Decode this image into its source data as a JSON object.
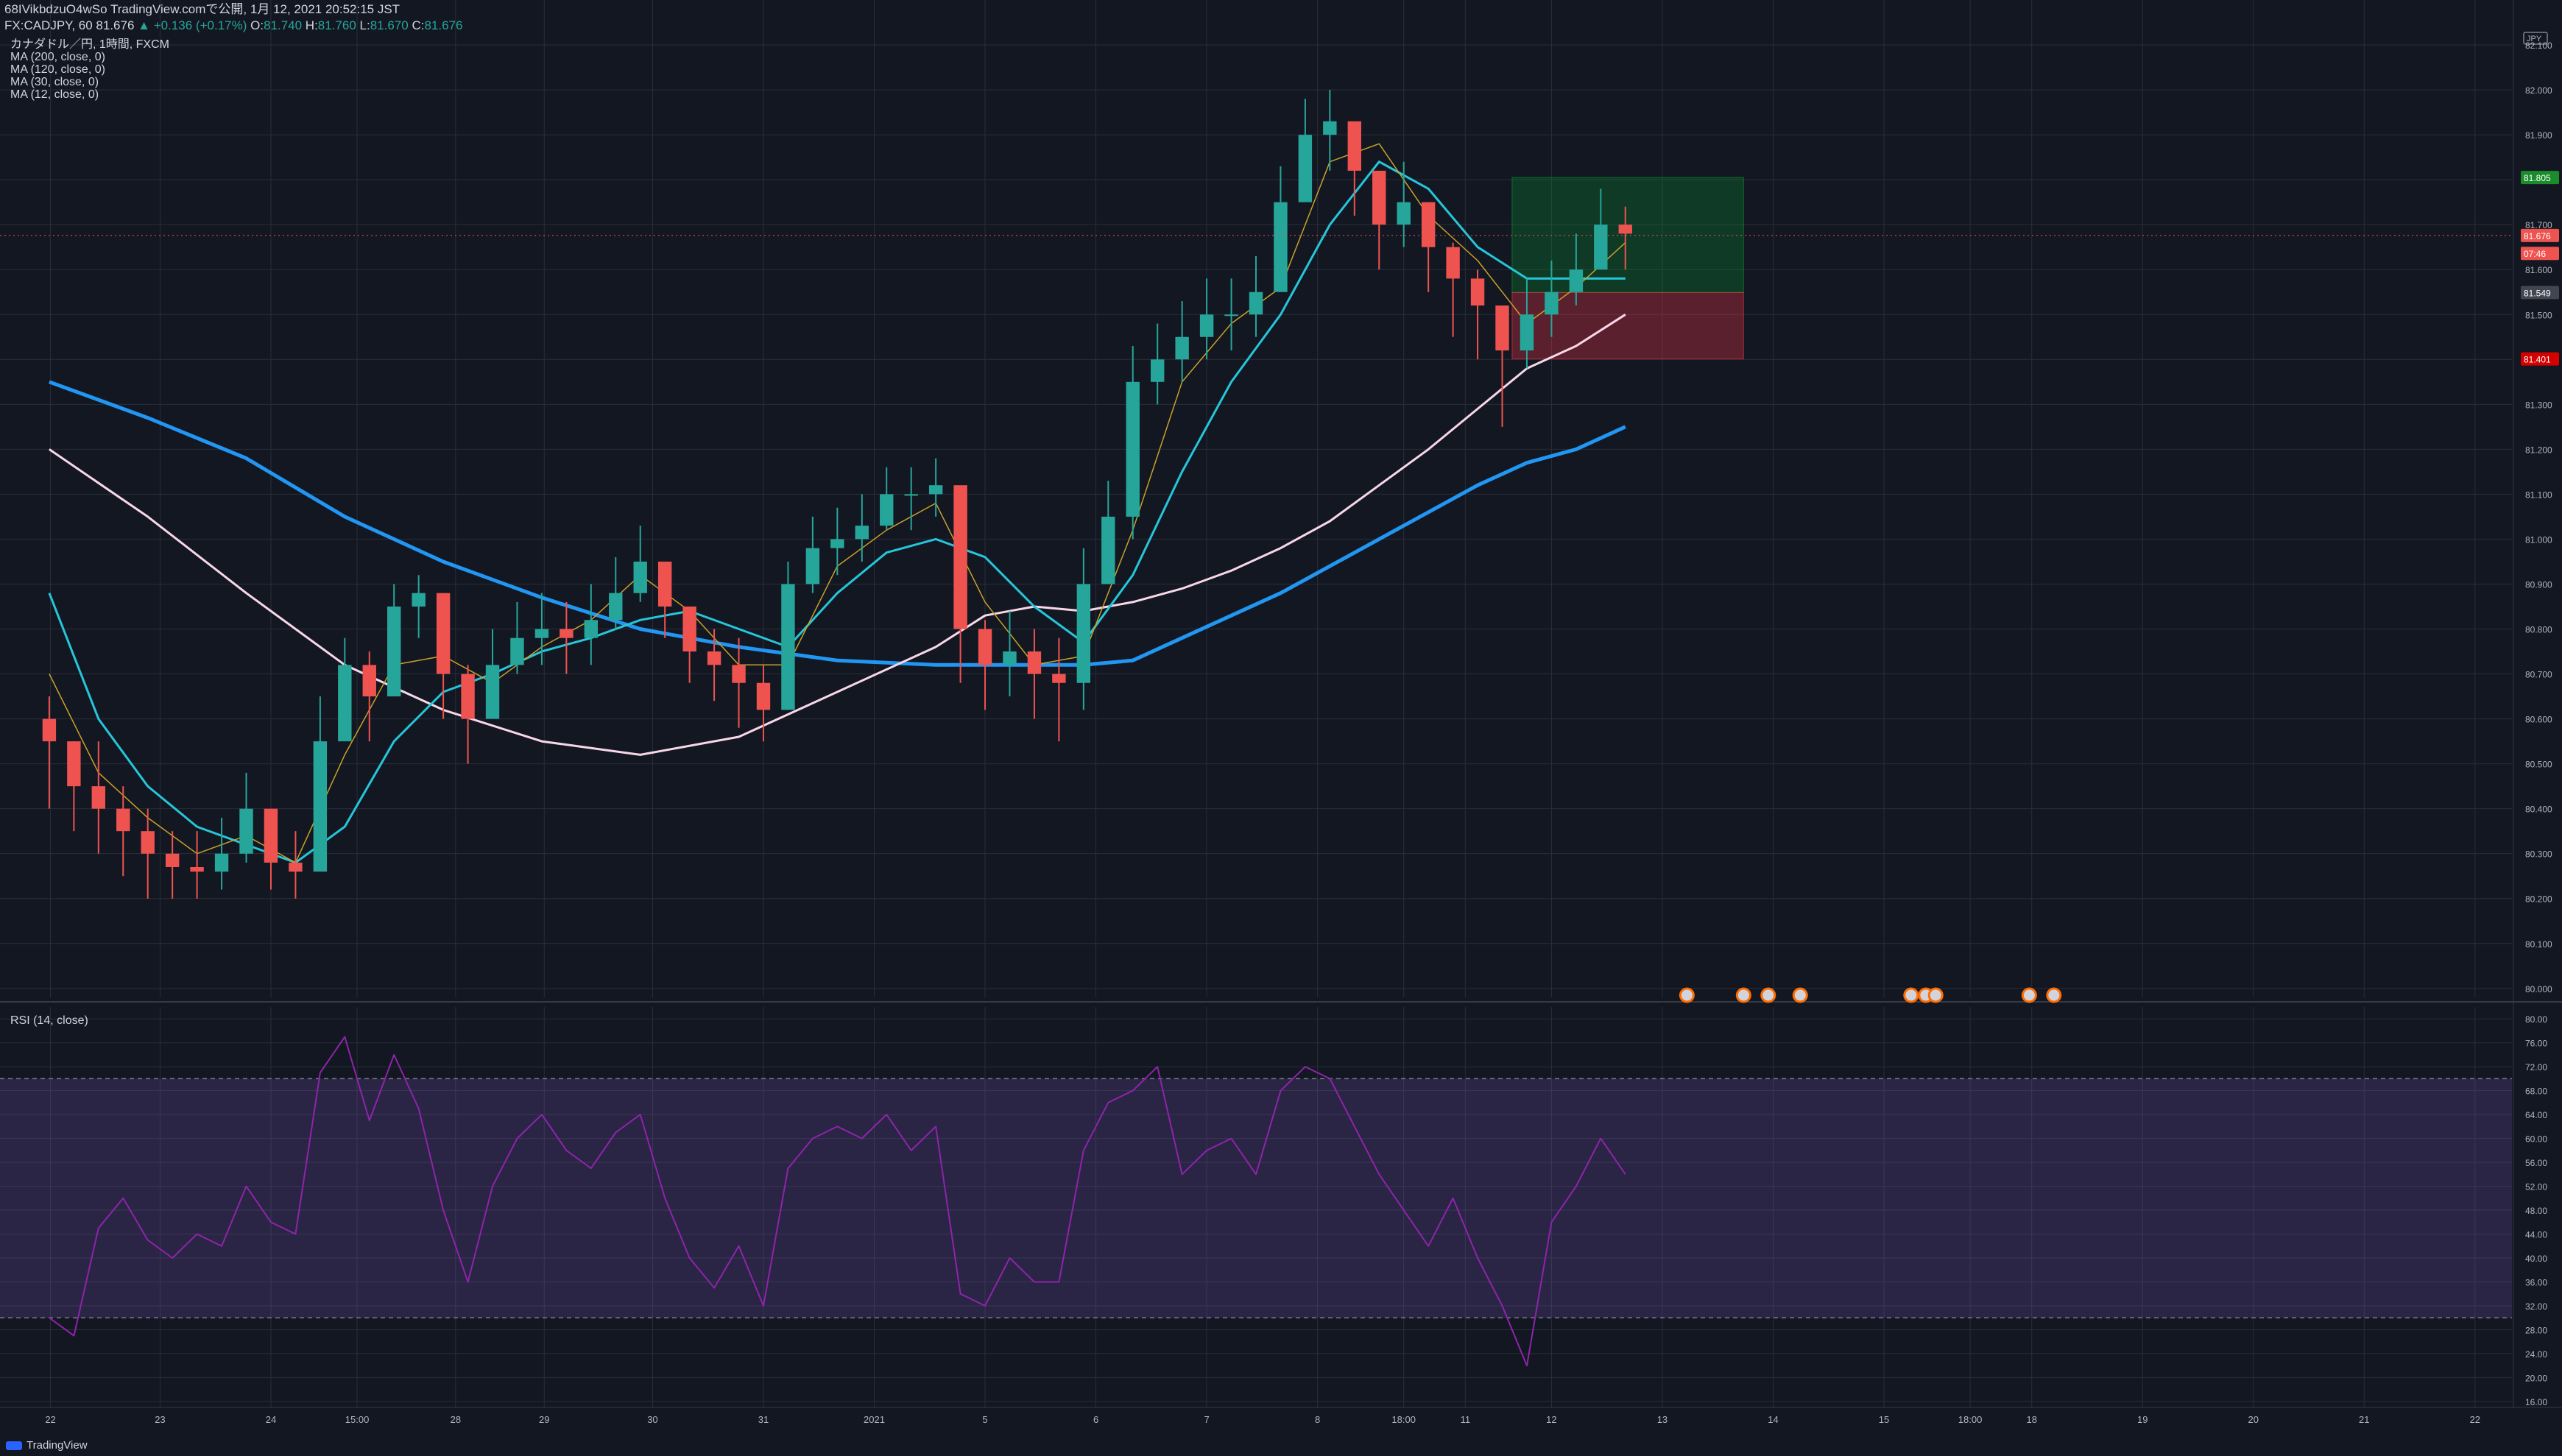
{
  "header": {
    "publish_line": "68IVikbdzuO4wSo TradingView.comで公開, 1月 12, 2021 20:52:15 JST",
    "symbol": "FX:CADJPY, 60",
    "last": "81.676",
    "change": "+0.136 (+0.17%)",
    "o_label": "O:",
    "o_val": "81.740",
    "h_label": "H:",
    "h_val": "81.760",
    "l_label": "L:",
    "l_val": "81.670",
    "c_label": "C:",
    "c_val": "81.676"
  },
  "indicators": {
    "title": "カナダドル／円, 1時間, FXCM",
    "ma200": "MA (200, close, 0)",
    "ma120": "MA (120, close, 0)",
    "ma30": "MA (30, close, 0)",
    "ma12": "MA (12, close, 0)"
  },
  "rsi": {
    "title": "RSI (14, close)"
  },
  "footer": {
    "brand": "TradingView"
  },
  "colors": {
    "background": "#131722",
    "grid": "#2a2e39",
    "up": "#26a69a",
    "down": "#ef5350",
    "ma200": "#2196f3",
    "ma120": "#f8d7e8",
    "ma30": "#26c6da",
    "ma12": "#c9a227",
    "rsi": "#7b2fbe",
    "rsi_band": "#3a1d55"
  },
  "chart_data": {
    "type": "candlestick",
    "price_axis": {
      "unit": "JPY",
      "ylim": [
        79.98,
        82.2
      ],
      "ticks": [
        "82.100",
        "82.000",
        "81.900",
        "81.800",
        "81.700",
        "81.600",
        "81.500",
        "81.400",
        "81.300",
        "81.200",
        "81.100",
        "81.000",
        "80.900",
        "80.800",
        "80.700",
        "80.600",
        "80.500",
        "80.400",
        "80.300",
        "80.200",
        "80.100",
        "80.000"
      ]
    },
    "price_labels": [
      {
        "text": "81.805",
        "value": 81.805,
        "color": "#1b8c2c"
      },
      {
        "text": "81.676",
        "value": 81.676,
        "color": "#ef5350"
      },
      {
        "text": "07:46",
        "value": 81.636,
        "color": "#ef5350"
      },
      {
        "text": "81.549",
        "value": 81.549,
        "color": "#434651"
      },
      {
        "text": "81.401",
        "value": 81.401,
        "color": "#d50000"
      }
    ],
    "time_axis": {
      "labels": [
        "22",
        "23",
        "24",
        "15:00",
        "28",
        "29",
        "30",
        "31",
        "2021",
        "5",
        "6",
        "7",
        "8",
        "18:00",
        "11",
        "12",
        "13",
        "14",
        "15",
        "18:00",
        "18",
        "19",
        "20",
        "21",
        "22"
      ],
      "positions": [
        0.05,
        4.5,
        9,
        12.5,
        16.5,
        20.1,
        24.5,
        29,
        33.5,
        38,
        42.5,
        47,
        51.5,
        55,
        57.5,
        61,
        65.5,
        70,
        74.5,
        78,
        80.5,
        85,
        89.5,
        94,
        98.5
      ]
    },
    "x_range": [
      -2.0,
      100.0
    ],
    "price_series": {
      "x": [
        0,
        1,
        2,
        3,
        4,
        5,
        6,
        7,
        8,
        9,
        10,
        11,
        12,
        13,
        14,
        15,
        16,
        17,
        18,
        19,
        20,
        21,
        22,
        23,
        24,
        25,
        26,
        27,
        28,
        29,
        30,
        31,
        32,
        33,
        34,
        35,
        36,
        37,
        38,
        39,
        40,
        41,
        42,
        43,
        44,
        45,
        46,
        47,
        48,
        49,
        50,
        51,
        52,
        53,
        54,
        55,
        56,
        57,
        58,
        59,
        60,
        61,
        62,
        63,
        64
      ],
      "close": [
        80.55,
        80.45,
        80.4,
        80.35,
        80.3,
        80.27,
        80.26,
        80.3,
        80.4,
        80.28,
        80.26,
        80.55,
        80.72,
        80.65,
        80.85,
        80.88,
        80.7,
        80.6,
        80.72,
        80.78,
        80.8,
        80.78,
        80.82,
        80.88,
        80.95,
        80.85,
        80.75,
        80.72,
        80.68,
        80.62,
        80.9,
        80.98,
        81.0,
        81.03,
        81.1,
        81.1,
        81.12,
        80.8,
        80.72,
        80.75,
        80.7,
        80.68,
        80.9,
        81.05,
        81.35,
        81.4,
        81.45,
        81.5,
        81.5,
        81.55,
        81.75,
        81.9,
        81.93,
        81.82,
        81.7,
        81.75,
        81.65,
        81.58,
        81.52,
        81.42,
        81.5,
        81.55,
        81.6,
        81.7,
        81.68
      ],
      "high": [
        80.65,
        80.55,
        80.55,
        80.45,
        80.4,
        80.35,
        80.35,
        80.38,
        80.48,
        80.4,
        80.35,
        80.65,
        80.78,
        80.75,
        80.9,
        80.92,
        80.8,
        80.72,
        80.8,
        80.86,
        80.88,
        80.86,
        80.9,
        80.96,
        81.03,
        80.95,
        80.85,
        80.8,
        80.78,
        80.72,
        80.95,
        81.05,
        81.07,
        81.1,
        81.16,
        81.16,
        81.18,
        81.0,
        80.82,
        80.84,
        80.8,
        80.78,
        80.98,
        81.13,
        81.43,
        81.48,
        81.53,
        81.58,
        81.58,
        81.63,
        81.83,
        81.98,
        82.0,
        81.92,
        81.8,
        81.84,
        81.75,
        81.66,
        81.6,
        81.5,
        81.58,
        81.62,
        81.68,
        81.78,
        81.74
      ],
      "low": [
        80.4,
        80.35,
        80.3,
        80.25,
        80.2,
        80.2,
        80.2,
        80.22,
        80.28,
        80.22,
        80.2,
        80.35,
        80.6,
        80.55,
        80.72,
        80.78,
        80.6,
        80.5,
        80.62,
        80.7,
        80.72,
        80.7,
        80.72,
        80.8,
        80.86,
        80.78,
        80.68,
        80.64,
        80.58,
        80.55,
        80.68,
        80.88,
        80.92,
        80.95,
        81.02,
        81.02,
        81.05,
        80.68,
        80.62,
        80.65,
        80.6,
        80.55,
        80.62,
        80.9,
        81.0,
        81.3,
        81.35,
        81.4,
        81.42,
        81.45,
        81.55,
        81.78,
        81.82,
        81.72,
        81.6,
        81.65,
        81.55,
        81.45,
        81.4,
        81.25,
        81.38,
        81.45,
        81.52,
        81.6,
        81.6
      ]
    },
    "ma_series": [
      {
        "name": "MA (200, close, 0)",
        "period": 200,
        "x": [
          0,
          4,
          8,
          12,
          16,
          20,
          24,
          28,
          32,
          36,
          40,
          42,
          44,
          46,
          48,
          50,
          52,
          54,
          56,
          58,
          60,
          62,
          64
        ],
        "values": [
          81.35,
          81.27,
          81.18,
          81.05,
          80.95,
          80.87,
          80.8,
          80.76,
          80.73,
          80.72,
          80.72,
          80.72,
          80.73,
          80.78,
          80.83,
          80.88,
          80.94,
          81.0,
          81.06,
          81.12,
          81.17,
          81.2,
          81.25
        ]
      },
      {
        "name": "MA (120, close, 0)",
        "period": 120,
        "x": [
          0,
          4,
          8,
          12,
          16,
          20,
          24,
          28,
          32,
          36,
          38,
          40,
          42,
          44,
          46,
          48,
          50,
          52,
          54,
          56,
          58,
          60,
          62,
          64
        ],
        "values": [
          81.2,
          81.05,
          80.88,
          80.72,
          80.62,
          80.55,
          80.52,
          80.56,
          80.66,
          80.76,
          80.83,
          80.85,
          80.84,
          80.86,
          80.89,
          80.93,
          80.98,
          81.04,
          81.12,
          81.2,
          81.29,
          81.38,
          81.43,
          81.5
        ]
      },
      {
        "name": "MA (30, close, 0)",
        "period": 30,
        "x": [
          0,
          2,
          4,
          6,
          8,
          10,
          12,
          14,
          16,
          18,
          20,
          22,
          24,
          26,
          28,
          30,
          32,
          34,
          36,
          38,
          40,
          42,
          44,
          46,
          48,
          50,
          52,
          54,
          56,
          58,
          60,
          62,
          64
        ],
        "values": [
          80.88,
          80.6,
          80.45,
          80.36,
          80.32,
          80.28,
          80.36,
          80.55,
          80.66,
          80.7,
          80.75,
          80.78,
          80.82,
          80.84,
          80.8,
          80.76,
          80.88,
          80.97,
          81.0,
          80.96,
          80.85,
          80.77,
          80.92,
          81.15,
          81.35,
          81.5,
          81.7,
          81.84,
          81.78,
          81.65,
          81.58,
          81.58,
          81.58
        ]
      },
      {
        "name": "MA (12, close, 0)",
        "period": 12,
        "x": [
          0,
          2,
          4,
          6,
          8,
          10,
          12,
          14,
          16,
          18,
          20,
          22,
          24,
          26,
          28,
          30,
          32,
          34,
          36,
          38,
          40,
          42,
          44,
          46,
          48,
          50,
          52,
          54,
          56,
          58,
          60,
          62,
          64
        ],
        "values": [
          80.7,
          80.48,
          80.38,
          80.3,
          80.34,
          80.28,
          80.52,
          80.72,
          80.74,
          80.68,
          80.76,
          80.82,
          80.92,
          80.84,
          80.72,
          80.72,
          80.94,
          81.02,
          81.08,
          80.86,
          80.72,
          80.74,
          81.02,
          81.35,
          81.48,
          81.56,
          81.84,
          81.88,
          81.72,
          81.62,
          81.48,
          81.56,
          81.66
        ]
      }
    ],
    "position_tool": {
      "x_start": 59.4,
      "x_end": 68.8,
      "profit_top": 81.805,
      "entry": 81.549,
      "stop": 81.401
    },
    "event_markers": {
      "x": [
        66.5,
        68.8,
        69.8,
        71.1,
        75.6,
        76.2,
        76.6,
        80.4,
        81.4
      ]
    },
    "rsi": {
      "ylim": [
        15.0,
        82.0
      ],
      "ticks": [
        "80.00",
        "76.00",
        "72.00",
        "68.00",
        "64.00",
        "60.00",
        "56.00",
        "52.00",
        "48.00",
        "44.00",
        "40.00",
        "36.00",
        "32.00",
        "28.00",
        "24.00",
        "20.00",
        "16.00"
      ],
      "overbought": 70,
      "oversold": 30,
      "x": [
        0,
        1,
        2,
        3,
        4,
        5,
        6,
        7,
        8,
        9,
        10,
        11,
        12,
        13,
        14,
        15,
        16,
        17,
        18,
        19,
        20,
        21,
        22,
        23,
        24,
        25,
        26,
        27,
        28,
        29,
        30,
        31,
        32,
        33,
        34,
        35,
        36,
        37,
        38,
        39,
        40,
        41,
        42,
        43,
        44,
        45,
        46,
        47,
        48,
        49,
        50,
        51,
        52,
        53,
        54,
        55,
        56,
        57,
        58,
        59,
        60,
        61,
        62,
        63,
        64
      ],
      "values": [
        30,
        27,
        45,
        50,
        43,
        40,
        44,
        42,
        52,
        46,
        44,
        71,
        77,
        63,
        74,
        65,
        48,
        36,
        52,
        60,
        64,
        58,
        55,
        61,
        64,
        50,
        40,
        35,
        42,
        32,
        55,
        60,
        62,
        60,
        64,
        58,
        62,
        34,
        32,
        40,
        36,
        36,
        58,
        66,
        68,
        72,
        54,
        58,
        60,
        54,
        68,
        72,
        70,
        62,
        54,
        48,
        42,
        50,
        40,
        32,
        22,
        46,
        52,
        60,
        54
      ]
    }
  }
}
